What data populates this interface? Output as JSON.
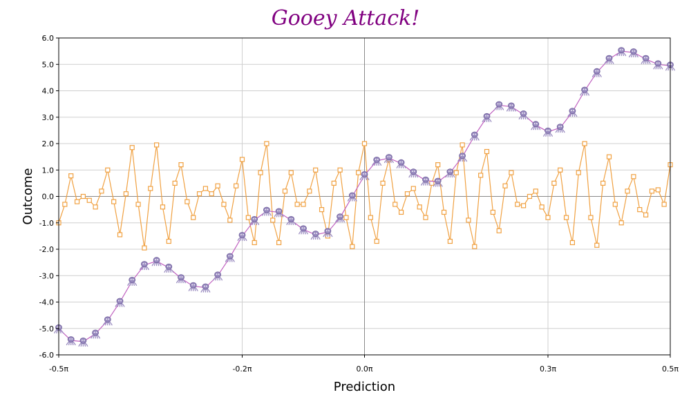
{
  "colors": {
    "title": "#800080",
    "orange_series": "#f0a040",
    "purple_series_line": "#c060c0",
    "purple_marker": "#9a8cc0",
    "grid": "#cfcfcf",
    "zero_line": "#888888"
  },
  "chart_data": {
    "type": "line",
    "title": "Gooey Attack!",
    "xlabel": "Prediction",
    "ylabel": "Outcome",
    "xlim": [
      -0.5,
      0.5
    ],
    "ylim": [
      -6,
      6
    ],
    "x_unit": "π",
    "grid": true,
    "legend": "none",
    "x_ticks": [
      -0.5,
      -0.2,
      0.0,
      0.3,
      0.5
    ],
    "x_tick_labels": [
      "-0.5π",
      "-0.2π",
      "0.0π",
      "0.3π",
      "0.5π"
    ],
    "y_ticks": [
      -6,
      -5,
      -4,
      -3,
      -2,
      -1,
      0,
      1,
      2,
      3,
      4,
      5,
      6
    ],
    "y_tick_labels": [
      "-6.0",
      "-5.0",
      "-4.0",
      "-3.0",
      "-2.0",
      "-1.0",
      "0.0",
      "1.0",
      "2.0",
      "3.0",
      "4.0",
      "5.0",
      "6.0"
    ],
    "series": [
      {
        "marker": "square",
        "color": "orange",
        "x": [
          -0.5,
          -0.49,
          -0.48,
          -0.47,
          -0.46,
          -0.45,
          -0.44,
          -0.43,
          -0.42,
          -0.41,
          -0.4,
          -0.39,
          -0.38,
          -0.37,
          -0.36,
          -0.35,
          -0.34,
          -0.33,
          -0.32,
          -0.31,
          -0.3,
          -0.29,
          -0.28,
          -0.27,
          -0.26,
          -0.25,
          -0.24,
          -0.23,
          -0.22,
          -0.21,
          -0.2,
          -0.19,
          -0.18,
          -0.17,
          -0.16,
          -0.15,
          -0.14,
          -0.13,
          -0.12,
          -0.11,
          -0.1,
          -0.09,
          -0.08,
          -0.07,
          -0.06,
          -0.05,
          -0.04,
          -0.03,
          -0.02,
          -0.01,
          0.0,
          0.01,
          0.02,
          0.03,
          0.04,
          0.05,
          0.06,
          0.07,
          0.08,
          0.09,
          0.1,
          0.11,
          0.12,
          0.13,
          0.14,
          0.15,
          0.16,
          0.17,
          0.18,
          0.19,
          0.2,
          0.21,
          0.22,
          0.23,
          0.24,
          0.25,
          0.26,
          0.27,
          0.28,
          0.29,
          0.3,
          0.31,
          0.32,
          0.33,
          0.34,
          0.35,
          0.36,
          0.37,
          0.38,
          0.39,
          0.4,
          0.41,
          0.42,
          0.43,
          0.44,
          0.45,
          0.46,
          0.47,
          0.48,
          0.49,
          0.5
        ],
        "values": [
          -1.0,
          -0.3,
          0.78,
          -0.2,
          0.0,
          -0.15,
          -0.4,
          0.2,
          1.0,
          -0.2,
          -1.45,
          0.1,
          1.85,
          -0.3,
          -1.95,
          0.3,
          1.95,
          -0.4,
          -1.7,
          0.5,
          1.2,
          -0.2,
          -0.8,
          0.1,
          0.3,
          0.1,
          0.4,
          -0.3,
          -0.9,
          0.4,
          1.4,
          -0.8,
          -1.75,
          0.9,
          2.0,
          -0.9,
          -1.75,
          0.2,
          0.9,
          -0.3,
          -0.3,
          0.2,
          1.0,
          -0.5,
          -1.5,
          0.5,
          1.0,
          -0.8,
          -1.9,
          0.9,
          2.0,
          -0.8,
          -1.7,
          0.5,
          1.4,
          -0.3,
          -0.6,
          0.1,
          0.3,
          -0.4,
          -0.8,
          0.5,
          1.2,
          -0.6,
          -1.7,
          0.9,
          1.95,
          -0.9,
          -1.9,
          0.8,
          1.7,
          -0.6,
          -1.3,
          0.4,
          0.9,
          -0.3,
          -0.35,
          0.0,
          0.2,
          -0.4,
          -0.8,
          0.5,
          1.0,
          -0.8,
          -1.75,
          0.9,
          2.0,
          -0.8,
          -1.85,
          0.5,
          1.5,
          -0.3,
          -1.0,
          0.2,
          0.75,
          -0.5,
          -0.7,
          0.2,
          0.25,
          -0.3,
          1.2
        ]
      },
      {
        "marker": "octopus",
        "color": "purple",
        "x": [
          -0.5,
          -0.48,
          -0.46,
          -0.44,
          -0.42,
          -0.4,
          -0.38,
          -0.36,
          -0.34,
          -0.32,
          -0.3,
          -0.28,
          -0.26,
          -0.24,
          -0.22,
          -0.2,
          -0.18,
          -0.16,
          -0.14,
          -0.12,
          -0.1,
          -0.08,
          -0.06,
          -0.04,
          -0.02,
          0.0,
          0.02,
          0.04,
          0.06,
          0.08,
          0.1,
          0.12,
          0.14,
          0.16,
          0.18,
          0.2,
          0.22,
          0.24,
          0.26,
          0.28,
          0.3,
          0.32,
          0.34,
          0.36,
          0.38,
          0.4,
          0.42,
          0.44,
          0.46,
          0.48,
          0.5
        ],
        "values": [
          -5.0,
          -5.45,
          -5.5,
          -5.2,
          -4.7,
          -4.0,
          -3.2,
          -2.6,
          -2.45,
          -2.7,
          -3.1,
          -3.4,
          -3.45,
          -3.0,
          -2.3,
          -1.5,
          -0.9,
          -0.55,
          -0.6,
          -0.9,
          -1.25,
          -1.45,
          -1.35,
          -0.8,
          0.0,
          0.8,
          1.35,
          1.45,
          1.25,
          0.9,
          0.6,
          0.55,
          0.9,
          1.5,
          2.3,
          3.0,
          3.45,
          3.4,
          3.1,
          2.7,
          2.45,
          2.6,
          3.2,
          4.0,
          4.7,
          5.2,
          5.5,
          5.45,
          5.2,
          5.0,
          4.95
        ]
      }
    ]
  }
}
